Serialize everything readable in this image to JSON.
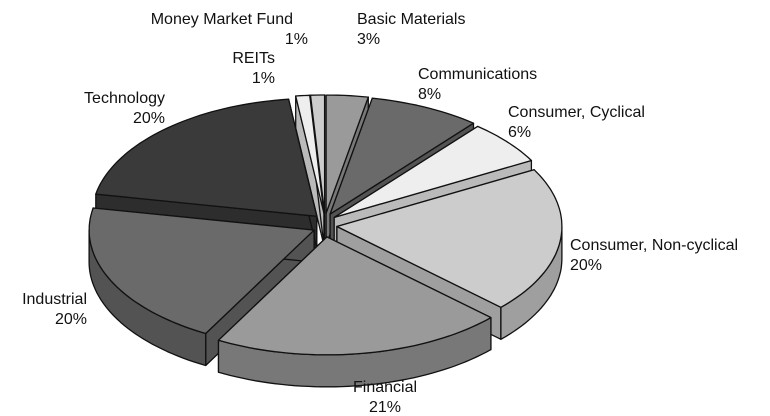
{
  "chart_data": {
    "type": "pie",
    "categories": [
      "Basic Materials",
      "Communications",
      "Consumer, Cyclical",
      "Consumer, Non-cyclical",
      "Financial",
      "Industrial",
      "Technology",
      "REITs",
      "Money Market Fund"
    ],
    "values": [
      3,
      8,
      6,
      20,
      21,
      20,
      20,
      1,
      1
    ],
    "value_labels": [
      "3%",
      "8%",
      "6%",
      "20%",
      "21%",
      "20%",
      "20%",
      "1%",
      "1%"
    ],
    "colors": [
      "#9a9a9a",
      "#6a6a6a",
      "#eeeeee",
      "#cccccc",
      "#9a9a9a",
      "#6a6a6a",
      "#3a3a3a",
      "#eeeeee",
      "#cccccc"
    ]
  }
}
